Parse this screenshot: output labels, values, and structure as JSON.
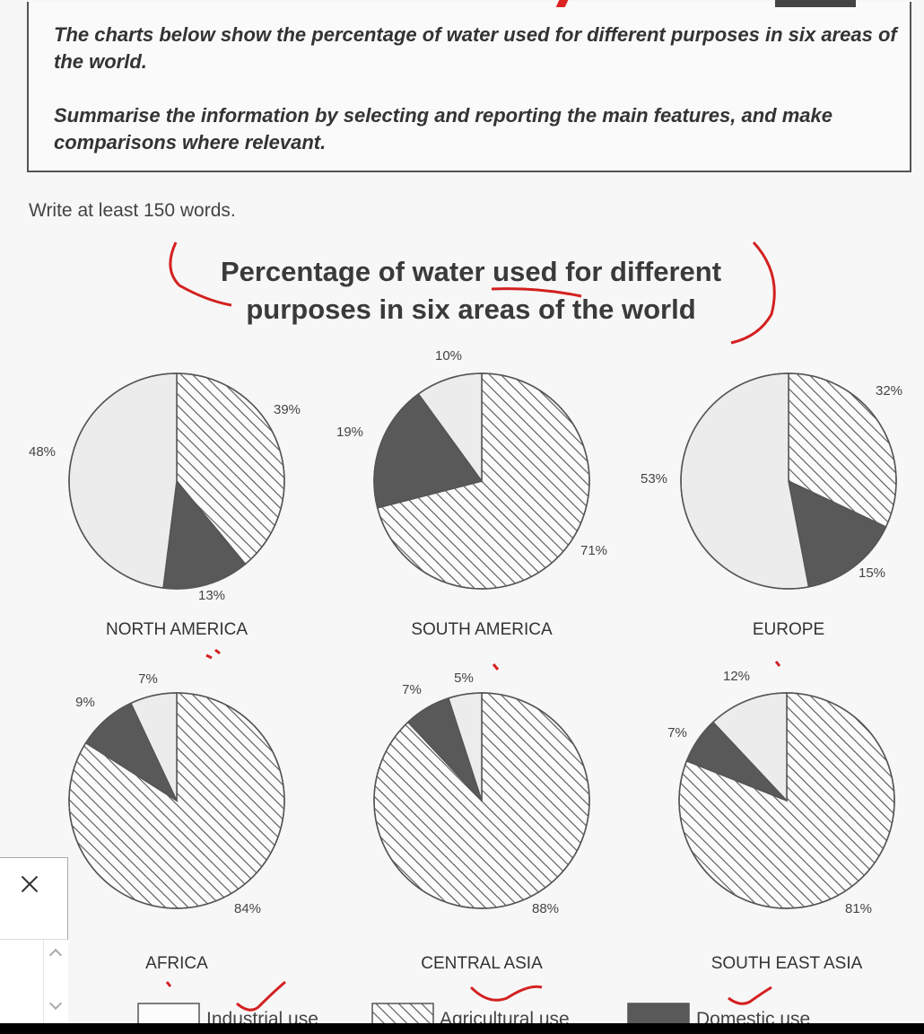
{
  "task": {
    "paragraph1": "The charts below show the percentage of water used for different purposes in six areas of the world.",
    "paragraph2": "Summarise the information by selecting and reporting the main features, and make comparisons where relevant."
  },
  "instruction": "Write at least 150 words.",
  "chart_data": {
    "type": "pie",
    "title": "Percentage of water used for different purposes in six areas of the world",
    "categories": [
      "Industrial use",
      "Agricultural use",
      "Domestic use"
    ],
    "pies": [
      {
        "region": "NORTH AMERICA",
        "values": [
          48,
          39,
          13
        ],
        "labels": [
          "48%",
          "39%",
          "13%"
        ]
      },
      {
        "region": "SOUTH AMERICA",
        "values": [
          10,
          71,
          19
        ],
        "labels": [
          "10%",
          "71%",
          "19%"
        ]
      },
      {
        "region": "EUROPE",
        "values": [
          53,
          32,
          15
        ],
        "labels": [
          "53%",
          "32%",
          "15%"
        ]
      },
      {
        "region": "AFRICA",
        "values": [
          7,
          84,
          9
        ],
        "labels": [
          "7%",
          "84%",
          "9%"
        ]
      },
      {
        "region": "CENTRAL ASIA",
        "values": [
          5,
          88,
          7
        ],
        "labels": [
          "5%",
          "88%",
          "7%"
        ]
      },
      {
        "region": "SOUTH EAST ASIA",
        "values": [
          12,
          81,
          7
        ],
        "labels": [
          "12%",
          "81%",
          "7%"
        ]
      }
    ],
    "legend": [
      {
        "name": "Industrial use",
        "pattern": "plain"
      },
      {
        "name": "Agricultural use",
        "pattern": "hatched"
      },
      {
        "name": "Domestic use",
        "pattern": "solid"
      }
    ],
    "legend_placement": "bottom",
    "colors": {
      "industrial": "#ececec",
      "agricultural_hatch": "#555555",
      "domestic": "#595959",
      "annotation": "#d42020"
    }
  }
}
